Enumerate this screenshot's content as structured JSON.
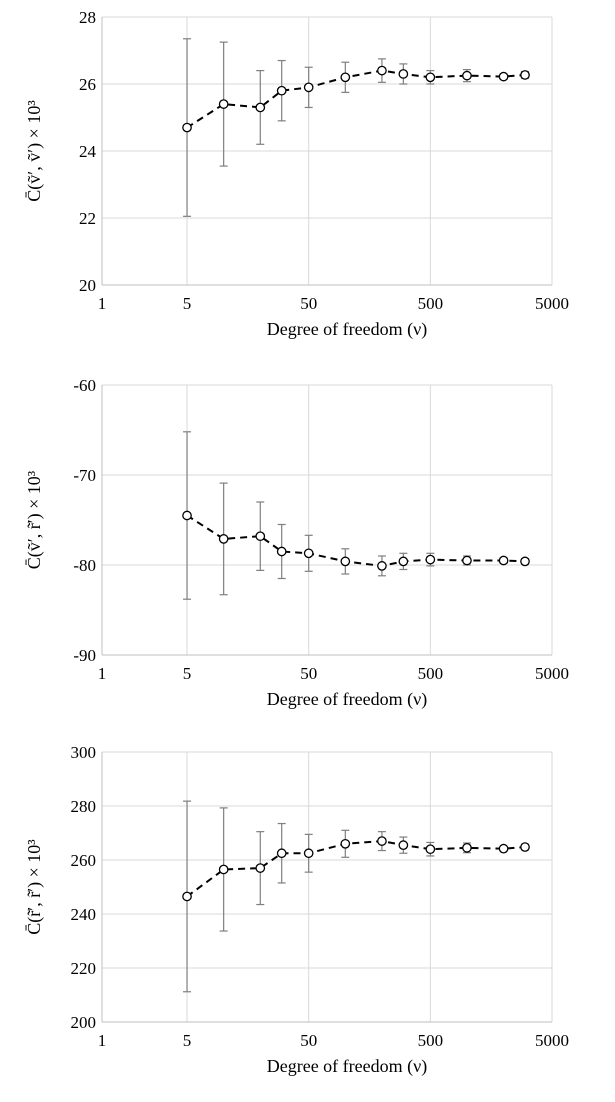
{
  "chart_data": [
    {
      "type": "line",
      "xscale": "log",
      "xlim": [
        1,
        5000
      ],
      "xticks": [
        1,
        5,
        50,
        500,
        5000
      ],
      "xtick_labels": [
        "1",
        "5",
        "50",
        "500",
        "5000"
      ],
      "ylim": [
        20,
        28
      ],
      "yticks": [
        20,
        22,
        24,
        26,
        28
      ],
      "ytick_labels": [
        "20",
        "22",
        "24",
        "26",
        "28"
      ],
      "xlabel": "Degree of freedom (ν)",
      "ylabel": "C̄(ṽ′, ṽ′) × 10³",
      "grid": true,
      "series": [
        {
          "x": [
            5,
            10,
            20,
            30,
            50,
            100,
            200,
            300,
            500,
            1000,
            2000,
            3000
          ],
          "y": [
            24.7,
            25.4,
            25.3,
            25.8,
            25.9,
            26.2,
            26.4,
            26.3,
            26.2,
            26.25,
            26.22,
            26.27
          ],
          "err": [
            2.65,
            1.85,
            1.1,
            0.9,
            0.6,
            0.45,
            0.35,
            0.3,
            0.2,
            0.18,
            0.08,
            0.1
          ]
        }
      ]
    },
    {
      "type": "line",
      "xscale": "log",
      "xlim": [
        1,
        5000
      ],
      "xticks": [
        1,
        5,
        50,
        500,
        5000
      ],
      "xtick_labels": [
        "1",
        "5",
        "50",
        "500",
        "5000"
      ],
      "ylim": [
        -90,
        -60
      ],
      "yticks": [
        -90,
        -80,
        -70,
        -60
      ],
      "ytick_labels": [
        "-90",
        "-80",
        "-70",
        "-60"
      ],
      "xlabel": "Degree of freedom (ν)",
      "ylabel": "C̄(ṽ′, r̃′) × 10³",
      "grid": true,
      "series": [
        {
          "x": [
            5,
            10,
            20,
            30,
            50,
            100,
            200,
            300,
            500,
            1000,
            2000,
            3000
          ],
          "y": [
            -74.5,
            -77.1,
            -76.8,
            -78.5,
            -78.7,
            -79.6,
            -80.1,
            -79.6,
            -79.4,
            -79.5,
            -79.5,
            -79.6
          ],
          "err": [
            9.3,
            6.2,
            3.8,
            3.0,
            2.0,
            1.4,
            1.1,
            0.9,
            0.7,
            0.5,
            0.3,
            0.3
          ]
        }
      ]
    },
    {
      "type": "line",
      "xscale": "log",
      "xlim": [
        1,
        5000
      ],
      "xticks": [
        1,
        5,
        50,
        500,
        5000
      ],
      "xtick_labels": [
        "1",
        "5",
        "50",
        "500",
        "5000"
      ],
      "ylim": [
        200,
        300
      ],
      "yticks": [
        200,
        220,
        240,
        260,
        280,
        300
      ],
      "ytick_labels": [
        "200",
        "220",
        "240",
        "260",
        "280",
        "300"
      ],
      "xlabel": "Degree of freedom (ν)",
      "ylabel": "C̄(r̃′, r̃′) × 10³",
      "grid": true,
      "series": [
        {
          "x": [
            5,
            10,
            20,
            30,
            50,
            100,
            200,
            300,
            500,
            1000,
            2000,
            3000
          ],
          "y": [
            246.5,
            256.5,
            257.0,
            262.5,
            262.5,
            266.0,
            267.0,
            265.5,
            264.0,
            264.5,
            264.2,
            264.8
          ],
          "err": [
            35.3,
            22.8,
            13.5,
            11.0,
            7.0,
            5.0,
            3.5,
            3.0,
            2.5,
            1.8,
            0.8,
            1.0
          ]
        }
      ]
    }
  ]
}
